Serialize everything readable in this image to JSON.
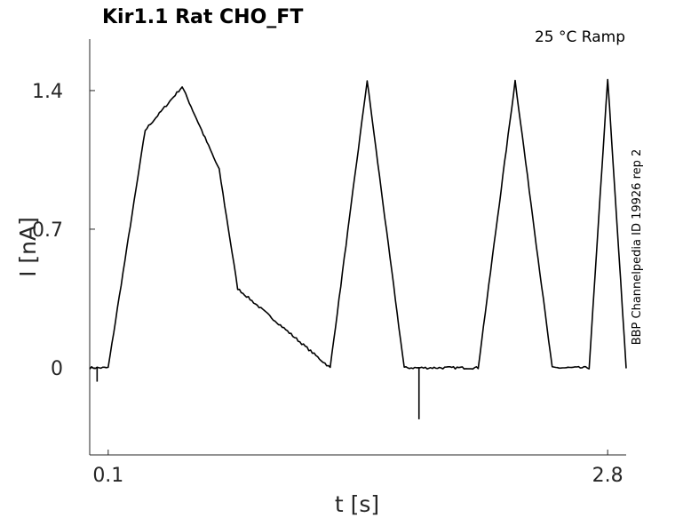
{
  "chart_data": {
    "type": "line",
    "title": "Kir1.1  Rat  CHO_FT",
    "condition": "25 °C  Ramp",
    "side_note": "BBP Channelpedia ID 19926 rep 2",
    "xlabel": "t [s]",
    "ylabel": "I [nA]",
    "xlim": [
      0.0,
      2.9
    ],
    "ylim": [
      -0.44,
      1.66
    ],
    "x_ticks": [
      {
        "value": 0.1,
        "label": "0.1"
      },
      {
        "value": 2.8,
        "label": "2.8"
      }
    ],
    "y_ticks": [
      {
        "value": 0,
        "label": "0"
      },
      {
        "value": 0.7,
        "label": "0.7"
      },
      {
        "value": 1.4,
        "label": "1.4"
      }
    ],
    "grid": false,
    "series": [
      {
        "x": [
          0.0,
          0.1,
          0.2,
          0.3,
          0.5,
          0.7,
          0.8,
          1.3,
          1.5,
          1.7,
          2.1,
          2.3,
          2.5,
          2.7,
          2.8,
          2.9
        ],
        "y": [
          0,
          0,
          0.6,
          1.2,
          1.42,
          1.0,
          0.4,
          0,
          1.45,
          0,
          0,
          1.45,
          0,
          0,
          1.46,
          0
        ],
        "color": "#000000"
      }
    ],
    "annotations": [
      {
        "type": "transient",
        "x": 0.04,
        "y": -0.07
      },
      {
        "type": "transient",
        "x": 1.78,
        "y": -0.26
      }
    ]
  }
}
